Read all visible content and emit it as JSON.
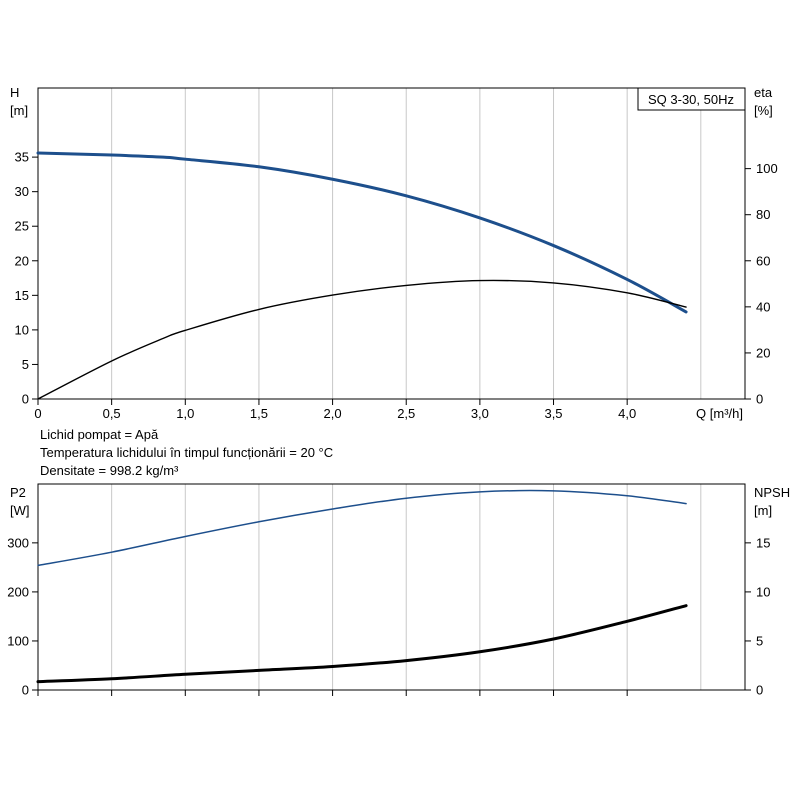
{
  "chart_data": [
    {
      "type": "line",
      "model_label": "SQ 3-30, 50Hz",
      "x_axis": {
        "label": "Q [m³/h]",
        "range": [
          0,
          4.8
        ],
        "ticks": [
          0,
          0.5,
          1.0,
          1.5,
          2.0,
          2.5,
          3.0,
          3.5,
          4.0
        ],
        "tick_labels": [
          "0",
          "0,5",
          "1,0",
          "1,5",
          "2,0",
          "2,5",
          "3,0",
          "3,5",
          "4,0"
        ]
      },
      "y_left": {
        "label_line1": "H",
        "label_line2": "[m]",
        "range": [
          0,
          45
        ],
        "ticks": [
          0,
          5,
          10,
          15,
          20,
          25,
          30,
          35
        ]
      },
      "y_right": {
        "label_line1": "eta",
        "label_line2": "[%]",
        "range": [
          0,
          135
        ],
        "ticks": [
          0,
          20,
          40,
          60,
          80,
          100
        ]
      },
      "grid": true,
      "series": [
        {
          "axis": "left",
          "color": "#1d4f8c",
          "x": [
            0,
            0.5,
            0.85,
            1.0,
            1.5,
            2.0,
            2.5,
            3.0,
            3.5,
            4.0,
            4.4
          ],
          "values": [
            35.6,
            35.3,
            35.0,
            34.7,
            33.6,
            31.8,
            29.4,
            26.2,
            22.2,
            17.3,
            12.6
          ]
        },
        {
          "axis": "right",
          "color": "#000000",
          "x": [
            0,
            0.5,
            0.85,
            1.0,
            1.5,
            2.0,
            2.5,
            3.0,
            3.5,
            4.0,
            4.4
          ],
          "values": [
            0,
            16.5,
            26.3,
            29.8,
            38.9,
            45.1,
            49.3,
            51.4,
            50.4,
            46.1,
            39.9
          ]
        }
      ]
    },
    {
      "type": "line",
      "x_axis": {
        "range": [
          0,
          4.8
        ],
        "ticks": [
          0,
          0.5,
          1.0,
          1.5,
          2.0,
          2.5,
          3.0,
          3.5,
          4.0
        ]
      },
      "y_left": {
        "label_line1": "P2",
        "label_line2": "[W]",
        "range": [
          0,
          420
        ],
        "ticks": [
          0,
          100,
          200,
          300
        ]
      },
      "y_right": {
        "label_line1": "NPSH",
        "label_line2": "[m]",
        "range": [
          0,
          21
        ],
        "ticks": [
          0,
          5,
          10,
          15
        ]
      },
      "grid": true,
      "series": [
        {
          "axis": "left",
          "color": "#1d4f8c",
          "x": [
            0,
            0.5,
            1.0,
            1.5,
            2.0,
            2.5,
            3.0,
            3.5,
            4.0,
            4.4
          ],
          "values": [
            254,
            281,
            313,
            343,
            369,
            391,
            404,
            406,
            396,
            380
          ]
        },
        {
          "axis": "right",
          "color": "#000000",
          "x": [
            0,
            0.5,
            1.0,
            1.5,
            2.0,
            2.5,
            3.0,
            3.5,
            4.0,
            4.4
          ],
          "values": [
            0.85,
            1.15,
            1.6,
            2.0,
            2.4,
            3.0,
            3.9,
            5.2,
            7.0,
            8.6
          ]
        }
      ]
    }
  ],
  "fluid_info": {
    "line1": "Lichid pompat = Apă",
    "line2": "Temperatura lichidului în timpul funcționării = 20 °C",
    "line3": "Densitate = 998.2 kg/m³"
  }
}
